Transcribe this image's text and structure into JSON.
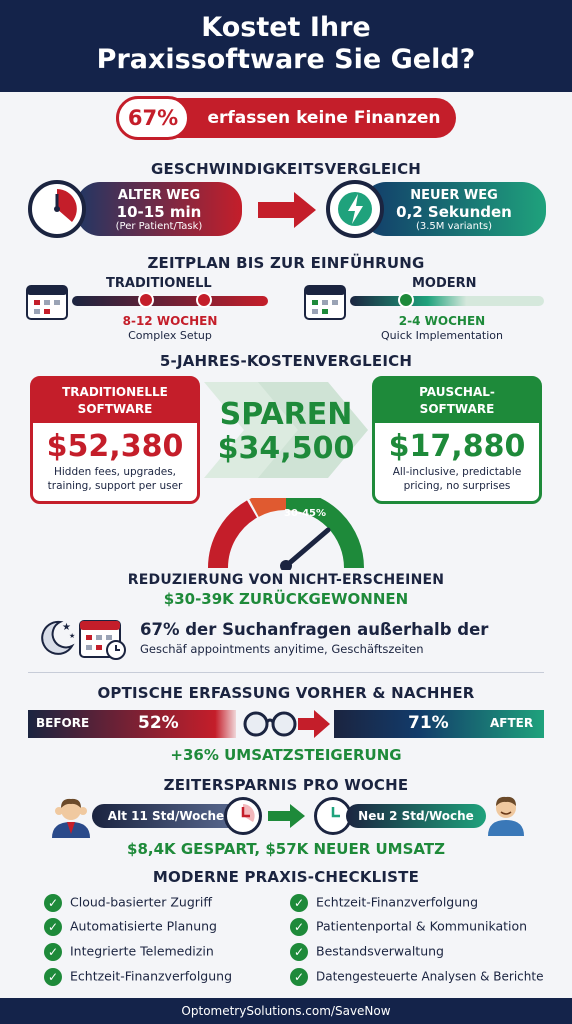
{
  "header": {
    "title_line1": "Kostet Ihre",
    "title_line2": "Praxissoftware Sie Geld?",
    "stat_value": "67%",
    "stat_text": "erfassen keine Finanzen"
  },
  "speed": {
    "title": "GESCHWINDIGKEITSVERGLEICH",
    "old_label": "ALTER WEG",
    "old_value": "10-15 min",
    "old_note": "(Per Patient/Task)",
    "new_label": "NEUER WEG",
    "new_value": "0,2 Sekunden",
    "new_note": "(3.5M variants)"
  },
  "timeline": {
    "title": "ZEITPLAN BIS ZUR EINFÜHRUNG",
    "trad_label": "TRADITIONELL",
    "trad_value": "8-12 WOCHEN",
    "trad_note": "Complex Setup",
    "mod_label": "MODERN",
    "mod_value": "2-4 WOCHEN",
    "mod_note": "Quick Implementation"
  },
  "costs": {
    "title": "5-JAHRES-KOSTENVERGLEICH",
    "trad_head_1": "TRADITIONELLE",
    "trad_head_2": "SOFTWARE",
    "trad_price": "$52,380",
    "trad_note_1": "Hidden fees, upgrades,",
    "trad_note_2": "training, support per user",
    "save_word": "SPAREN",
    "save_value": "$34,500",
    "flat_head_1": "PAUSCHAL-",
    "flat_head_2": "SOFTWARE",
    "flat_price": "$17,880",
    "flat_note_1": "All-inclusive, predictable",
    "flat_note_2": "pricing, no surprises"
  },
  "noshow": {
    "gauge_label": "30-45%",
    "title": "REDUZIERUNG VON NICHT-ERSCHEINEN",
    "subtitle": "$30-39K ZURÜCKGEWONNEN",
    "search_line1": "67% der Suchanfragen außerhalb der",
    "search_line2": "Geschäf appointments anyitime, Geschäftszeiten"
  },
  "optical": {
    "title": "OPTISCHE ERFASSUNG VORHER & NACHHER",
    "before_label": "BEFORE",
    "before_value": "52%",
    "after_value": "71%",
    "after_label": "AFTER",
    "increase": "+36% UMSATZSTEIGERUNG"
  },
  "timesave": {
    "title": "ZEITERSPARNIS PRO WOCHE",
    "old": "Alt 11 Std/Woche",
    "new": "Neu 2 Std/Woche",
    "result": "$8,4K GESPART, $57K NEUER UMSATZ"
  },
  "checklist": {
    "title": "MODERNE PRAXIS-CHECKLISTE",
    "left": [
      "Cloud-basierter Zugriff",
      "Automatisierte Planung",
      "Integrierte Telemedizin",
      "Echtzeit-Finanzverfolgung"
    ],
    "right": [
      "Echtzeit-Finanzverfolgung",
      "Patientenportal & Kommunikation",
      "Bestandsverwaltung",
      "Datengesteuerte Analysen & Berichte"
    ]
  },
  "footer": {
    "url": "OptometrySolutions.com/SaveNow"
  },
  "colors": {
    "navy": "#14234a",
    "red": "#c41e2a",
    "green": "#1e8a3a",
    "teal": "#1fa27c"
  }
}
